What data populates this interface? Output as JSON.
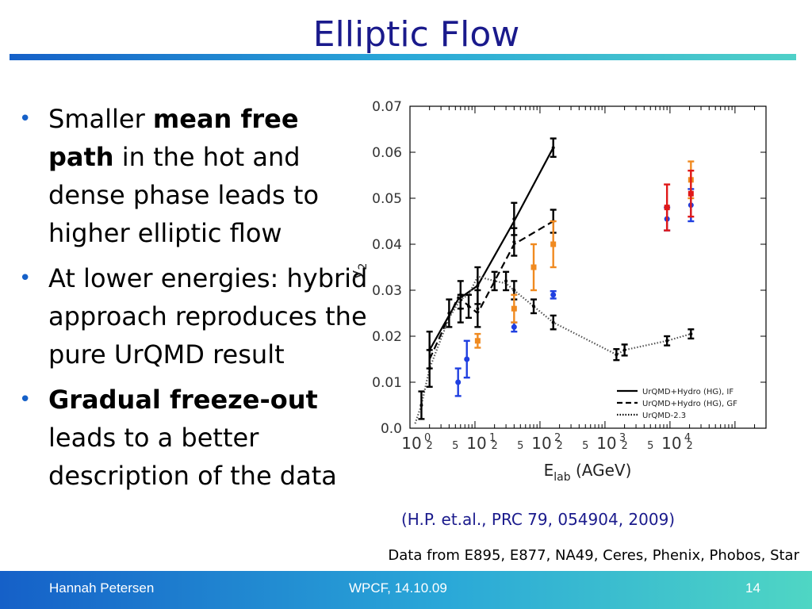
{
  "title": "Elliptic Flow",
  "bullets": [
    {
      "pre": "Smaller ",
      "bold": "mean free path",
      "post": " in the hot and dense phase leads to higher elliptic flow"
    },
    {
      "pre": "At lower energies: hybrid approach reproduces the pure UrQMD result",
      "bold": "",
      "post": ""
    },
    {
      "pre": "",
      "bold": "Gradual freeze-out",
      "post": " leads to a better description of the data"
    }
  ],
  "citation": "(H.P. et.al., PRC 79, 054904, 2009)",
  "data_source": "Data from E895, E877, NA49, Ceres, Phenix, Phobos, Star",
  "footer": {
    "author": "Hannah Petersen",
    "event": "WPCF, 14.10.09",
    "page": "14"
  },
  "colors": {
    "title": "#1a1a8c",
    "accent": "#1560c8",
    "black": "#000000",
    "blue": "#1f3fe0",
    "orange": "#f08a20",
    "red": "#e01818"
  },
  "chart_data": {
    "type": "scatter",
    "xlabel_main": "E",
    "xlabel_sub": "lab",
    "xlabel_unit": " (AGeV)",
    "ylabel_main": "v",
    "ylabel_sub": "2",
    "x_scale": "log",
    "xlim": [
      1,
      300000
    ],
    "ylim": [
      0,
      0.07
    ],
    "y_ticks": [
      "0.0",
      "0.01",
      "0.02",
      "0.03",
      "0.04",
      "0.05",
      "0.06",
      "0.07"
    ],
    "x_decades": [
      {
        "exp": "0",
        "value": 1
      },
      {
        "exp": "1",
        "value": 10
      },
      {
        "exp": "2",
        "value": 100
      },
      {
        "exp": "3",
        "value": 1000
      },
      {
        "exp": "4",
        "value": 10000
      }
    ],
    "x_minor_labels": [
      {
        "label": "2",
        "value": 2
      },
      {
        "label": "5",
        "value": 5
      },
      {
        "label": "2",
        "value": 20
      },
      {
        "label": "5",
        "value": 50
      },
      {
        "label": "2",
        "value": 200
      },
      {
        "label": "5",
        "value": 500
      },
      {
        "label": "2",
        "value": 2000
      },
      {
        "label": "5",
        "value": 5000
      },
      {
        "label": "2",
        "value": 20000
      }
    ],
    "lines": [
      {
        "name": "UrQMD+Hydro (HG), IF",
        "style": "solid",
        "points": [
          [
            2,
            0.017
          ],
          [
            5.5,
            0.028
          ],
          [
            11,
            0.031
          ],
          [
            40,
            0.045
          ],
          [
            160,
            0.061
          ]
        ]
      },
      {
        "name": "UrQMD+Hydro (HG), GF",
        "style": "dashed",
        "points": [
          [
            2,
            0.015
          ],
          [
            5.5,
            0.0285
          ],
          [
            11,
            0.025
          ],
          [
            40,
            0.04
          ],
          [
            160,
            0.045
          ]
        ]
      },
      {
        "name": "UrQMD-2.3",
        "style": "dotted",
        "points": [
          [
            1.2,
            0.001
          ],
          [
            1.5,
            0.005
          ],
          [
            2,
            0.013
          ],
          [
            4,
            0.024
          ],
          [
            6,
            0.028
          ],
          [
            8,
            0.029
          ],
          [
            11,
            0.033
          ],
          [
            20,
            0.032
          ],
          [
            30,
            0.0315
          ],
          [
            40,
            0.03
          ],
          [
            80,
            0.0265
          ],
          [
            160,
            0.023
          ],
          [
            1500,
            0.016
          ],
          [
            2000,
            0.017
          ],
          [
            9000,
            0.019
          ],
          [
            21000,
            0.0205
          ]
        ]
      }
    ],
    "error_points": [
      {
        "color": "black",
        "x": 1.5,
        "y": 0.005,
        "err": 0.003
      },
      {
        "color": "black",
        "x": 2,
        "y": 0.017,
        "err": 0.004
      },
      {
        "color": "black",
        "x": 2,
        "y": 0.013,
        "err": 0.004
      },
      {
        "color": "black",
        "x": 4,
        "y": 0.025,
        "err": 0.003
      },
      {
        "color": "black",
        "x": 6,
        "y": 0.029,
        "err": 0.003
      },
      {
        "color": "black",
        "x": 6,
        "y": 0.026,
        "err": 0.003
      },
      {
        "color": "black",
        "x": 8,
        "y": 0.0265,
        "err": 0.0025
      },
      {
        "color": "black",
        "x": 11,
        "y": 0.031,
        "err": 0.004
      },
      {
        "color": "black",
        "x": 11,
        "y": 0.026,
        "err": 0.004
      },
      {
        "color": "black",
        "x": 20,
        "y": 0.032,
        "err": 0.002
      },
      {
        "color": "black",
        "x": 30,
        "y": 0.032,
        "err": 0.002
      },
      {
        "color": "black",
        "x": 40,
        "y": 0.0455,
        "err": 0.0035
      },
      {
        "color": "black",
        "x": 40,
        "y": 0.0405,
        "err": 0.003
      },
      {
        "color": "black",
        "x": 40,
        "y": 0.03,
        "err": 0.002
      },
      {
        "color": "black",
        "x": 80,
        "y": 0.0265,
        "err": 0.0015
      },
      {
        "color": "black",
        "x": 160,
        "y": 0.061,
        "err": 0.002
      },
      {
        "color": "black",
        "x": 160,
        "y": 0.045,
        "err": 0.0025
      },
      {
        "color": "black",
        "x": 160,
        "y": 0.023,
        "err": 0.0015
      },
      {
        "color": "black",
        "x": 1500,
        "y": 0.016,
        "err": 0.0012
      },
      {
        "color": "black",
        "x": 2000,
        "y": 0.017,
        "err": 0.0012
      },
      {
        "color": "black",
        "x": 9000,
        "y": 0.019,
        "err": 0.001
      },
      {
        "color": "black",
        "x": 21000,
        "y": 0.0205,
        "err": 0.001
      },
      {
        "color": "blue",
        "x": 5.5,
        "y": 0.01,
        "err": 0.003
      },
      {
        "color": "blue",
        "x": 7.5,
        "y": 0.015,
        "err": 0.004
      },
      {
        "color": "blue",
        "x": 40,
        "y": 0.022,
        "err": 0.001
      },
      {
        "color": "blue",
        "x": 160,
        "y": 0.029,
        "err": 0.0008
      },
      {
        "color": "blue",
        "x": 9000,
        "y": 0.0455,
        "err": 0.0025
      },
      {
        "color": "blue",
        "x": 21000,
        "y": 0.0485,
        "err": 0.0035
      },
      {
        "color": "orange",
        "x": 11,
        "y": 0.019,
        "err": 0.0015
      },
      {
        "color": "orange",
        "x": 40,
        "y": 0.026,
        "err": 0.003
      },
      {
        "color": "orange",
        "x": 80,
        "y": 0.035,
        "err": 0.005
      },
      {
        "color": "orange",
        "x": 160,
        "y": 0.04,
        "err": 0.005
      },
      {
        "color": "orange",
        "x": 21000,
        "y": 0.054,
        "err": 0.004
      },
      {
        "color": "red",
        "x": 9000,
        "y": 0.048,
        "err": 0.005
      },
      {
        "color": "red",
        "x": 21000,
        "y": 0.051,
        "err": 0.005
      }
    ],
    "legend": {
      "position": "bottom-right",
      "entries": [
        "UrQMD+Hydro (HG), IF",
        "UrQMD+Hydro (HG), GF",
        "UrQMD-2.3"
      ]
    },
    "grid": false
  }
}
